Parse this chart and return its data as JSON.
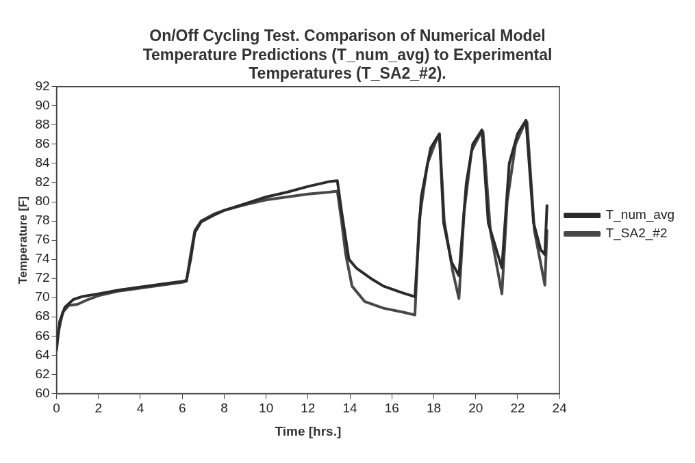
{
  "chart_data": {
    "type": "line",
    "title": [
      "On/Off Cycling Test. Comparison of Numerical Model",
      "Temperature Predictions (T_num_avg) to Experimental",
      "Temperatures (T_SA2_#2)."
    ],
    "xlabel": "Time [hrs.]",
    "ylabel": "Temperature [F]",
    "xlim": [
      0,
      24
    ],
    "xticks": [
      0,
      2,
      4,
      6,
      8,
      10,
      12,
      14,
      16,
      18,
      20,
      22,
      24
    ],
    "ylim": [
      60,
      92
    ],
    "yticks": [
      60,
      62,
      64,
      66,
      68,
      70,
      72,
      74,
      76,
      78,
      80,
      82,
      84,
      86,
      88,
      90,
      92
    ],
    "grid": false,
    "legend": "right",
    "marker": "none",
    "line_style": "solid",
    "series": [
      {
        "name": "T_num_avg",
        "color": "#2b2b2b",
        "x": [
          0,
          0.15,
          0.4,
          0.8,
          1.2,
          2,
          3,
          4,
          5,
          6,
          6.2,
          6.4,
          6.6,
          6.9,
          7.5,
          8,
          9,
          10,
          11,
          12,
          13,
          13.4,
          13.6,
          13.95,
          14.3,
          15,
          15.6,
          16.5,
          17.1,
          17.4,
          17.85,
          18.27,
          18.47,
          18.85,
          19.2,
          19.55,
          19.86,
          20.3,
          20.6,
          21.25,
          21.6,
          22.0,
          22.4,
          22.76,
          23.1,
          23.3,
          23.4
        ],
        "values": [
          64.5,
          67.5,
          69,
          69.8,
          70.1,
          70.4,
          70.8,
          71.1,
          71.4,
          71.7,
          71.8,
          74,
          76.8,
          77.9,
          78.6,
          79.1,
          79.8,
          80.5,
          81,
          81.6,
          82.1,
          82.2,
          79,
          74,
          73.1,
          72,
          71.2,
          70.5,
          70.1,
          80.5,
          85.6,
          87.1,
          77.8,
          73.7,
          72.3,
          81.9,
          86,
          87.5,
          77.8,
          73.1,
          84,
          87.1,
          88.5,
          77.8,
          75,
          74.5,
          79.6
        ]
      },
      {
        "name": "T_SA2_#2",
        "color": "#484848",
        "x": [
          0,
          0.1,
          0.3,
          0.6,
          1,
          1.5,
          2,
          3,
          4,
          5,
          6,
          6.2,
          6.4,
          6.6,
          6.9,
          7.5,
          8,
          9,
          10,
          11,
          12,
          13,
          13.4,
          13.6,
          13.8,
          14.1,
          14.7,
          15.6,
          16.5,
          17.1,
          17.3,
          17.7,
          18.1,
          18.27,
          18.5,
          18.9,
          19.2,
          19.45,
          19.8,
          20.2,
          20.35,
          20.7,
          21.25,
          21.5,
          21.9,
          22.3,
          22.45,
          22.8,
          23.3,
          23.4
        ],
        "values": [
          65.5,
          66.5,
          68.5,
          69.2,
          69.3,
          69.8,
          70.2,
          70.7,
          71,
          71.3,
          71.6,
          71.7,
          74.5,
          77,
          78,
          78.7,
          79.1,
          79.7,
          80.2,
          80.5,
          80.8,
          81,
          81.1,
          78,
          74.5,
          71.2,
          69.6,
          68.9,
          68.5,
          68.2,
          78,
          84,
          86.3,
          87,
          78,
          72.8,
          69.9,
          79,
          85.3,
          87,
          87.3,
          77,
          70.4,
          80,
          86,
          88,
          88.3,
          77,
          71.3,
          77
        ]
      }
    ]
  }
}
